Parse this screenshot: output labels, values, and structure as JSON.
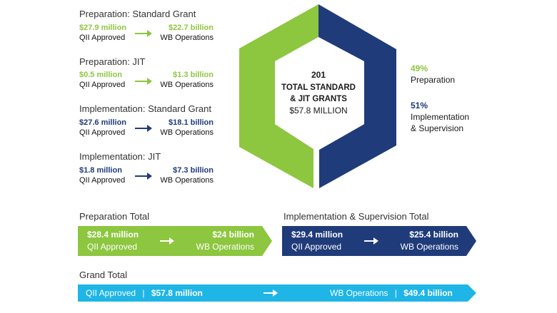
{
  "colors": {
    "preparation": "#8dc63f",
    "implementation": "#1f3b7a",
    "grand": "#1fb5e6"
  },
  "sections": [
    {
      "title": "Preparation: Standard Grant",
      "left_amount": "$27.9 million",
      "left_label": "QII Approved",
      "right_amount": "$22.7 billion",
      "right_label": "WB Operations"
    },
    {
      "title": "Preparation: JIT",
      "left_amount": "$0.5 million",
      "left_label": "QII Approved",
      "right_amount": "$1.3 billion",
      "right_label": "WB Operations"
    },
    {
      "title": "Implementation: Standard Grant",
      "left_amount": "$27.6 million",
      "left_label": "QII Approved",
      "right_amount": "$18.1 billion",
      "right_label": "WB Operations"
    },
    {
      "title": "Implementation: JIT",
      "left_amount": "$1.8 million",
      "left_label": "QII Approved",
      "right_amount": "$7.3 billion",
      "right_label": "WB Operations"
    }
  ],
  "hexagon": {
    "count": "201",
    "label_line1": "TOTAL STANDARD",
    "label_line2": "& JIT GRANTS",
    "value": "$57.8 MILLION",
    "share_preparation": 0.49,
    "share_implementation": 0.51
  },
  "legend": {
    "prep_pct": "49%",
    "prep_label": "Preparation",
    "impl_pct": "51%",
    "impl_label_line1": "Implementation",
    "impl_label_line2": "& Supervision"
  },
  "totals": {
    "preparation": {
      "title": "Preparation Total",
      "left_amount": "$28.4 million",
      "left_label": "QII Approved",
      "right_amount": "$24 billion",
      "right_label": "WB Operations"
    },
    "implementation": {
      "title": "Implementation & Supervision Total",
      "left_amount": "$29.4 million",
      "left_label": "QII Approved",
      "right_amount": "$25.4 billion",
      "right_label": "WB Operations"
    }
  },
  "grand_total": {
    "title": "Grand Total",
    "left_label": "QII Approved",
    "left_amount": "$57.8 million",
    "right_label": "WB Operations",
    "right_amount": "$49.4 billion",
    "separator": "|"
  }
}
